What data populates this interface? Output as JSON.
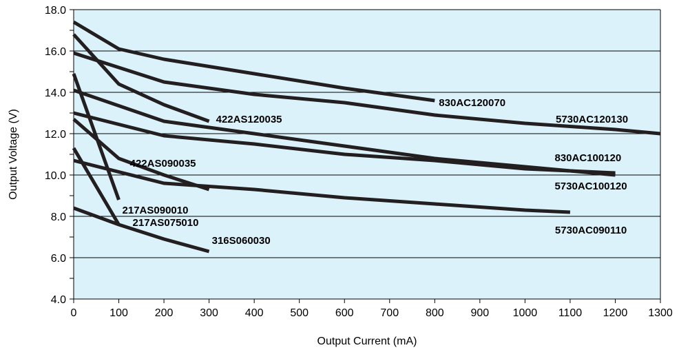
{
  "chart_data": {
    "type": "line",
    "xlabel": "Output Current (mA)",
    "ylabel": "Output Voltage (V)",
    "xlim": [
      0,
      1300
    ],
    "ylim": [
      4.0,
      18.0
    ],
    "x_ticks": [
      0,
      100,
      200,
      300,
      400,
      500,
      600,
      700,
      800,
      900,
      1000,
      1100,
      1200,
      1300
    ],
    "x_tick_labels": [
      "0",
      "100",
      "200",
      "300",
      "400",
      "500",
      "600",
      "700",
      "800",
      "900",
      "1000",
      "1100",
      "1200",
      "1300"
    ],
    "y_ticks": [
      4.0,
      6.0,
      8.0,
      10.0,
      12.0,
      14.0,
      16.0,
      18.0
    ],
    "y_tick_labels": [
      "4.0",
      "6.0",
      "8.0",
      "10.0",
      "12.0",
      "14.0",
      "16.0",
      "18.0"
    ],
    "y_minor_step": 1.0,
    "grid": true,
    "legend": "none",
    "colors": {
      "plot_background": "#dcf2fb",
      "grid": "#000000",
      "series": "#231f20"
    },
    "series": [
      {
        "name": "830AC120070",
        "x": [
          0,
          100,
          200,
          400,
          600,
          800
        ],
        "y": [
          17.4,
          16.1,
          15.6,
          14.9,
          14.2,
          13.6
        ]
      },
      {
        "name": "5730AC120130",
        "x": [
          0,
          200,
          400,
          600,
          800,
          1000,
          1200,
          1300
        ],
        "y": [
          15.9,
          14.5,
          13.9,
          13.5,
          12.9,
          12.5,
          12.2,
          12.0
        ]
      },
      {
        "name": "422AS120035",
        "x": [
          0,
          100,
          200,
          300
        ],
        "y": [
          16.8,
          14.4,
          13.4,
          12.6
        ]
      },
      {
        "name": "830AC100120",
        "x": [
          0,
          200,
          400,
          600,
          800,
          1000,
          1200
        ],
        "y": [
          14.1,
          12.6,
          12.0,
          11.4,
          10.8,
          10.4,
          10.0
        ]
      },
      {
        "name": "5730AC100120",
        "x": [
          0,
          200,
          400,
          600,
          800,
          1000,
          1200
        ],
        "y": [
          13.0,
          11.9,
          11.5,
          11.0,
          10.7,
          10.3,
          10.1
        ]
      },
      {
        "name": "422AS090035",
        "x": [
          0,
          100,
          200,
          300
        ],
        "y": [
          12.7,
          10.8,
          10.0,
          9.3
        ]
      },
      {
        "name": "217AS090010",
        "x": [
          0,
          100
        ],
        "y": [
          14.9,
          8.8
        ]
      },
      {
        "name": "5730AC090110",
        "x": [
          0,
          200,
          400,
          600,
          800,
          1000,
          1100
        ],
        "y": [
          10.7,
          9.6,
          9.3,
          8.9,
          8.6,
          8.3,
          8.2
        ]
      },
      {
        "name": "217AS075010",
        "x": [
          0,
          100
        ],
        "y": [
          11.3,
          7.6
        ]
      },
      {
        "name": "316S060030",
        "x": [
          0,
          100,
          200,
          300
        ],
        "y": [
          8.4,
          7.6,
          6.9,
          6.3
        ]
      }
    ]
  }
}
